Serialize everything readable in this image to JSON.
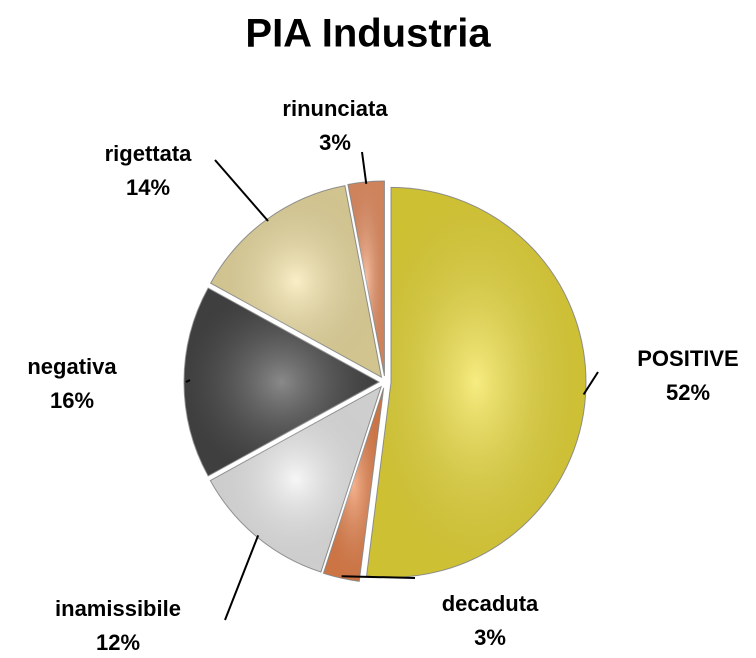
{
  "chart_data": {
    "type": "pie",
    "title": "PIA Industria",
    "categories": [
      "POSITIVE",
      "decaduta",
      "inamissibile",
      "negativa",
      "rigettata",
      "rinunciata"
    ],
    "values": [
      52,
      3,
      12,
      16,
      14,
      3
    ],
    "value_labels": [
      "52%",
      "3%",
      "12%",
      "16%",
      "14%",
      "3%"
    ],
    "colors": [
      "#f2e23c",
      "#f08850",
      "#f2f2f2",
      "#4a4a4a",
      "#f6e6a8",
      "#f39a6c"
    ]
  }
}
